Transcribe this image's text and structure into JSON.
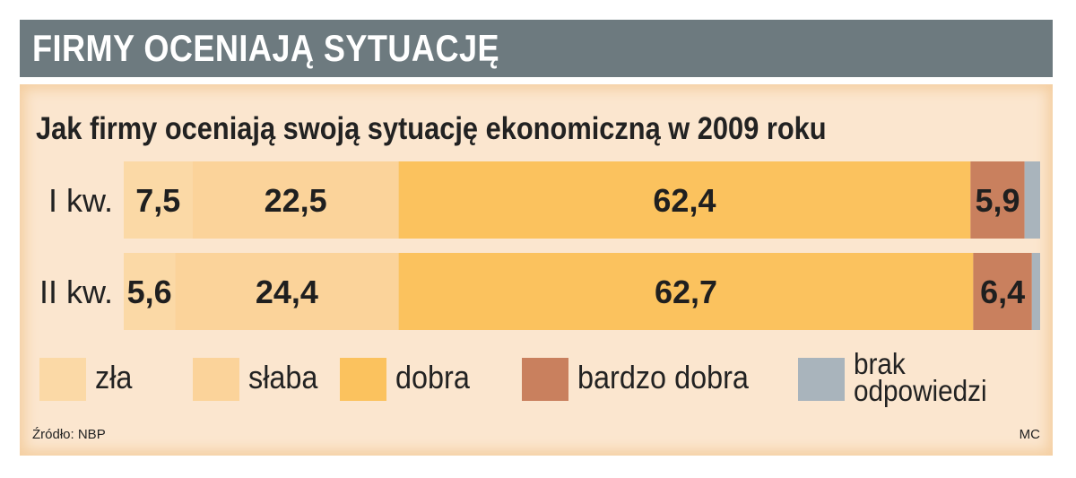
{
  "header": {
    "title": "FIRMY OCENIAJĄ SYTUACJĘ"
  },
  "chart_data": {
    "type": "bar",
    "orientation": "horizontal",
    "stacked": true,
    "title": "Jak firmy oceniają swoją sytuację ekonomiczną w 2009 roku",
    "categories": [
      "I kw.",
      "II kw."
    ],
    "series": [
      {
        "name": "zła",
        "values": [
          7.5,
          5.6
        ],
        "color": "#fbd9a6",
        "labels": [
          "7,5",
          "5,6"
        ]
      },
      {
        "name": "słaba",
        "values": [
          22.5,
          24.4
        ],
        "color": "#fbd39a",
        "labels": [
          "22,5",
          "24,4"
        ]
      },
      {
        "name": "dobra",
        "values": [
          62.4,
          62.7
        ],
        "color": "#fbc25e",
        "labels": [
          "62,4",
          "62,7"
        ]
      },
      {
        "name": "bardzo dobra",
        "values": [
          5.9,
          6.4
        ],
        "color": "#c9805e",
        "labels": [
          "5,9",
          "6,4"
        ]
      },
      {
        "name": "brak odpowiedzi",
        "values": [
          1.7,
          0.9
        ],
        "color": "#a9b4bc",
        "labels": [
          "",
          ""
        ]
      }
    ],
    "xlim": [
      0,
      100
    ],
    "legend": "bottom",
    "grid": false
  },
  "legend": {
    "items": [
      {
        "label": "zła",
        "color": "#fbd9a6"
      },
      {
        "label": "słaba",
        "color": "#fbd39a"
      },
      {
        "label": "dobra",
        "color": "#fbc25e"
      },
      {
        "label": "bardzo dobra",
        "color": "#c9805e"
      },
      {
        "label_line1": "brak",
        "label_line2": "odpowiedzi",
        "color": "#a9b4bc"
      }
    ]
  },
  "footer": {
    "source": "Źródło: NBP",
    "credit": "MC"
  }
}
